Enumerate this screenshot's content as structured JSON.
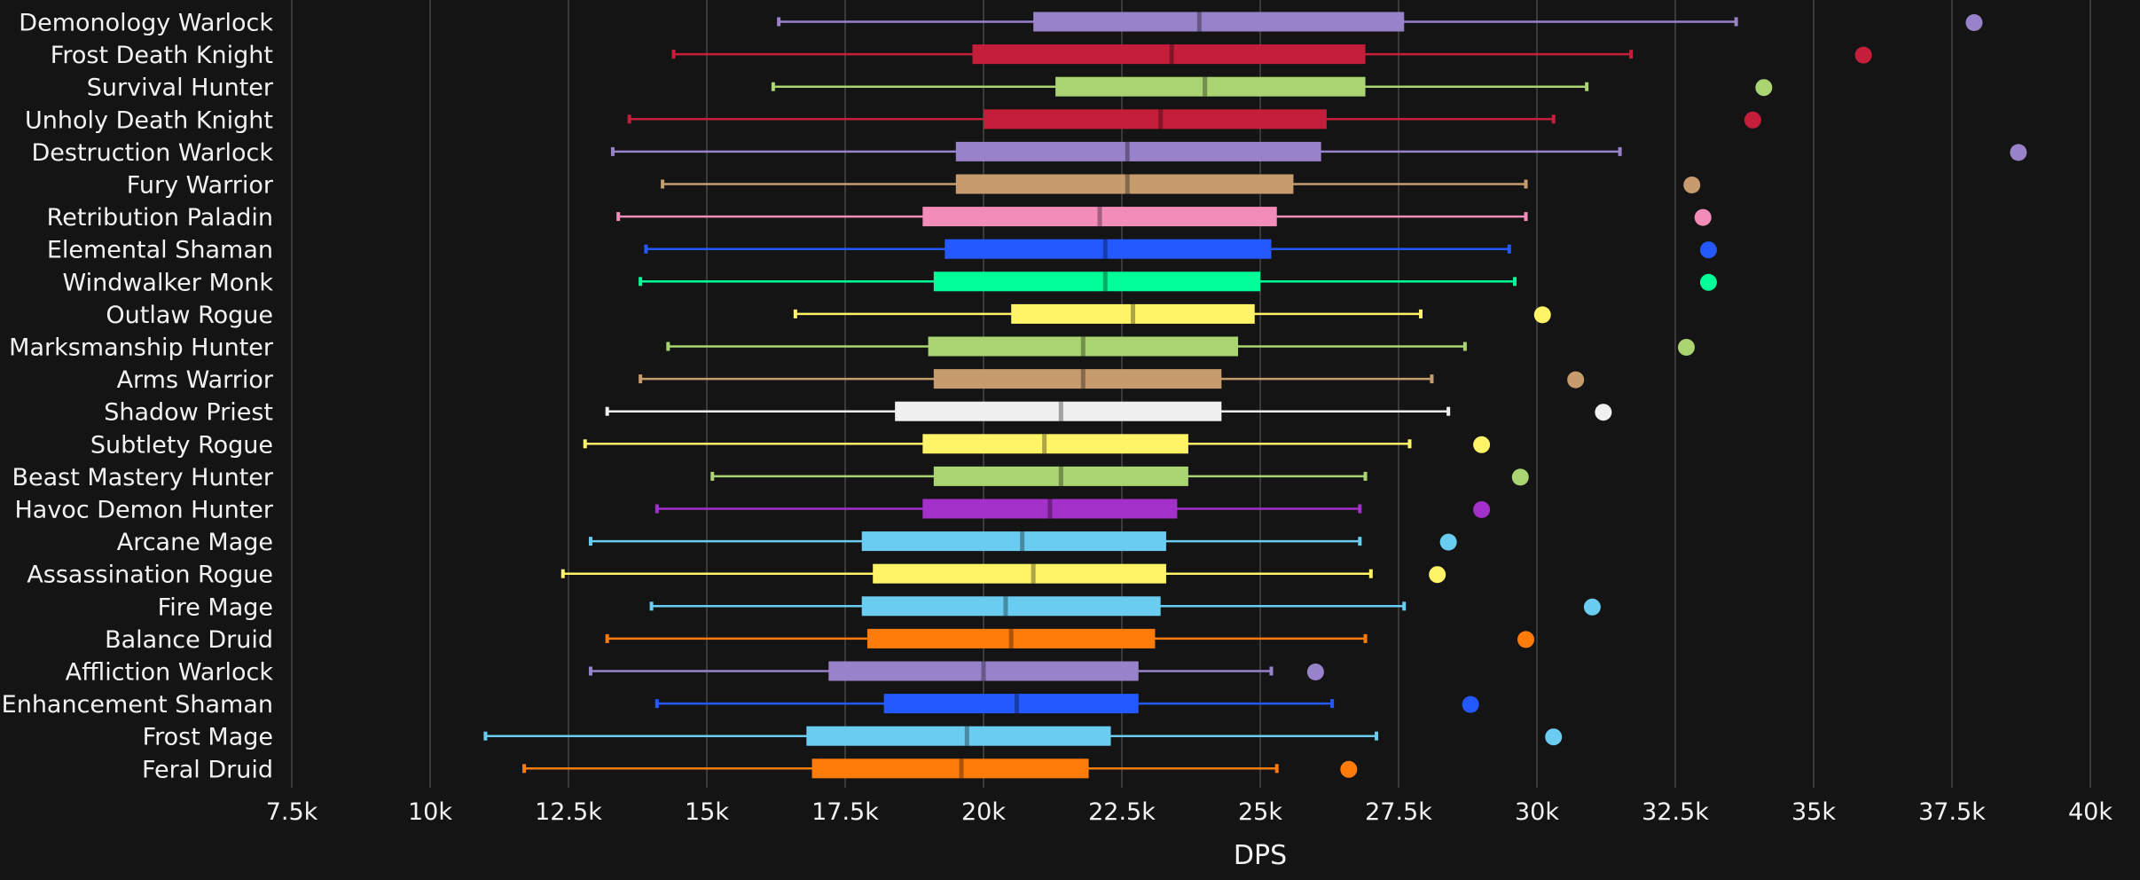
{
  "chart_data": {
    "type": "boxplot",
    "xlabel": "DPS",
    "xlim": [
      7500,
      40000
    ],
    "xticks": [
      7500,
      10000,
      12500,
      15000,
      17500,
      20000,
      22500,
      25000,
      27500,
      30000,
      32500,
      35000,
      37500,
      40000
    ],
    "xtick_labels": [
      "7.5k",
      "10k",
      "12.5k",
      "15k",
      "17.5k",
      "20k",
      "22.5k",
      "25k",
      "27.5k",
      "30k",
      "32.5k",
      "35k",
      "37.5k",
      "40k"
    ],
    "grid": true,
    "series": [
      {
        "name": "Demonology Warlock",
        "color": "#9882c9",
        "min": 16300,
        "q1": 20900,
        "median": 23900,
        "q3": 27600,
        "max": 33600,
        "outlier": 37900
      },
      {
        "name": "Frost Death Knight",
        "color": "#c41e3a",
        "min": 14400,
        "q1": 19800,
        "median": 23400,
        "q3": 26900,
        "max": 31700,
        "outlier": 35900
      },
      {
        "name": "Survival Hunter",
        "color": "#aad372",
        "min": 16200,
        "q1": 21300,
        "median": 24000,
        "q3": 26900,
        "max": 30900,
        "outlier": 34100
      },
      {
        "name": "Unholy Death Knight",
        "color": "#c41e3a",
        "min": 13600,
        "q1": 20000,
        "median": 23200,
        "q3": 26200,
        "max": 30300,
        "outlier": 33900
      },
      {
        "name": "Destruction Warlock",
        "color": "#9882c9",
        "min": 13300,
        "q1": 19500,
        "median": 22600,
        "q3": 26100,
        "max": 31500,
        "outlier": 38700
      },
      {
        "name": "Fury Warrior",
        "color": "#c69b6d",
        "min": 14200,
        "q1": 19500,
        "median": 22600,
        "q3": 25600,
        "max": 29800,
        "outlier": 32800
      },
      {
        "name": "Retribution Paladin",
        "color": "#f48cba",
        "min": 13400,
        "q1": 18900,
        "median": 22100,
        "q3": 25300,
        "max": 29800,
        "outlier": 33000
      },
      {
        "name": "Elemental Shaman",
        "color": "#2359ff",
        "min": 13900,
        "q1": 19300,
        "median": 22200,
        "q3": 25200,
        "max": 29500,
        "outlier": 33100
      },
      {
        "name": "Windwalker Monk",
        "color": "#00ff98",
        "min": 13800,
        "q1": 19100,
        "median": 22200,
        "q3": 25000,
        "max": 29600,
        "outlier": 33100
      },
      {
        "name": "Outlaw Rogue",
        "color": "#fff468",
        "min": 16600,
        "q1": 20500,
        "median": 22700,
        "q3": 24900,
        "max": 27900,
        "outlier": 30100
      },
      {
        "name": "Marksmanship Hunter",
        "color": "#aad372",
        "min": 14300,
        "q1": 19000,
        "median": 21800,
        "q3": 24600,
        "max": 28700,
        "outlier": 32700
      },
      {
        "name": "Arms Warrior",
        "color": "#c69b6d",
        "min": 13800,
        "q1": 19100,
        "median": 21800,
        "q3": 24300,
        "max": 28100,
        "outlier": 30700
      },
      {
        "name": "Shadow Priest",
        "color": "#f0f0f0",
        "min": 13200,
        "q1": 18400,
        "median": 21400,
        "q3": 24300,
        "max": 28400,
        "outlier": 31200
      },
      {
        "name": "Subtlety Rogue",
        "color": "#fff468",
        "min": 12800,
        "q1": 18900,
        "median": 21100,
        "q3": 23700,
        "max": 27700,
        "outlier": 29000
      },
      {
        "name": "Beast Mastery Hunter",
        "color": "#aad372",
        "min": 15100,
        "q1": 19100,
        "median": 21400,
        "q3": 23700,
        "max": 26900,
        "outlier": 29700
      },
      {
        "name": "Havoc Demon Hunter",
        "color": "#a330c9",
        "min": 14100,
        "q1": 18900,
        "median": 21200,
        "q3": 23500,
        "max": 26800,
        "outlier": 29000
      },
      {
        "name": "Arcane Mage",
        "color": "#69ccf0",
        "min": 12900,
        "q1": 17800,
        "median": 20700,
        "q3": 23300,
        "max": 26800,
        "outlier": 28400
      },
      {
        "name": "Assassination Rogue",
        "color": "#fff468",
        "min": 12400,
        "q1": 18000,
        "median": 20900,
        "q3": 23300,
        "max": 27000,
        "outlier": 28200
      },
      {
        "name": "Fire Mage",
        "color": "#69ccf0",
        "min": 14000,
        "q1": 17800,
        "median": 20400,
        "q3": 23200,
        "max": 27600,
        "outlier": 31000
      },
      {
        "name": "Balance Druid",
        "color": "#ff7c0a",
        "min": 13200,
        "q1": 17900,
        "median": 20500,
        "q3": 23100,
        "max": 26900,
        "outlier": 29800
      },
      {
        "name": "Affliction Warlock",
        "color": "#9882c9",
        "min": 12900,
        "q1": 17200,
        "median": 20000,
        "q3": 22800,
        "max": 25200,
        "outlier": 26000
      },
      {
        "name": "Enhancement Shaman",
        "color": "#2359ff",
        "min": 14100,
        "q1": 18200,
        "median": 20600,
        "q3": 22800,
        "max": 26300,
        "outlier": 28800
      },
      {
        "name": "Frost Mage",
        "color": "#69ccf0",
        "min": 11000,
        "q1": 16800,
        "median": 19700,
        "q3": 22300,
        "max": 27100,
        "outlier": 30300
      },
      {
        "name": "Feral Druid",
        "color": "#ff7c0a",
        "min": 11700,
        "q1": 16900,
        "median": 19600,
        "q3": 21900,
        "max": 25300,
        "outlier": 26600
      }
    ]
  }
}
